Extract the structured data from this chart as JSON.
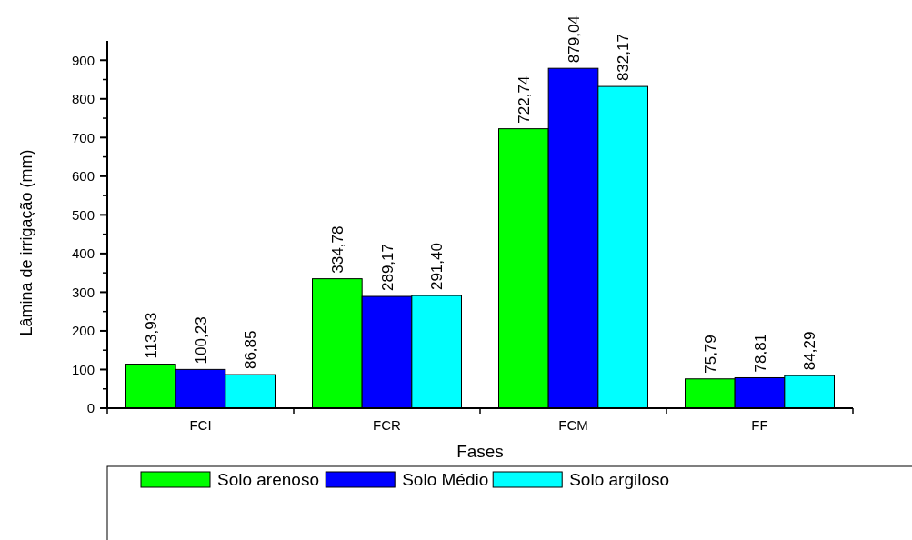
{
  "chart_data": {
    "type": "bar",
    "xlabel": "Fases",
    "ylabel": "Lâmina de irrigação (mm)",
    "categories": [
      "FCI",
      "FCR",
      "FCM",
      "FF"
    ],
    "series": [
      {
        "name": "Solo arenoso",
        "color": "#00ff00",
        "values": [
          113.93,
          334.78,
          722.74,
          75.79
        ],
        "value_labels": [
          "113,93",
          "334,78",
          "722,74",
          "75,79"
        ]
      },
      {
        "name": "Solo Médio",
        "color": "#0000ff",
        "values": [
          100.23,
          289.17,
          879.04,
          78.81
        ],
        "value_labels": [
          "100,23",
          "289,17",
          "879,04",
          "78,81"
        ]
      },
      {
        "name": "Solo argiloso",
        "color": "#00ffff",
        "values": [
          86.85,
          291.4,
          832.17,
          84.29
        ],
        "value_labels": [
          "86,85",
          "291,40",
          "832,17",
          "84,29"
        ]
      }
    ],
    "ylim": [
      0,
      950
    ],
    "yticks": [
      0,
      100,
      200,
      300,
      400,
      500,
      600,
      700,
      800,
      900
    ],
    "grid": false,
    "legend": "bottom"
  }
}
